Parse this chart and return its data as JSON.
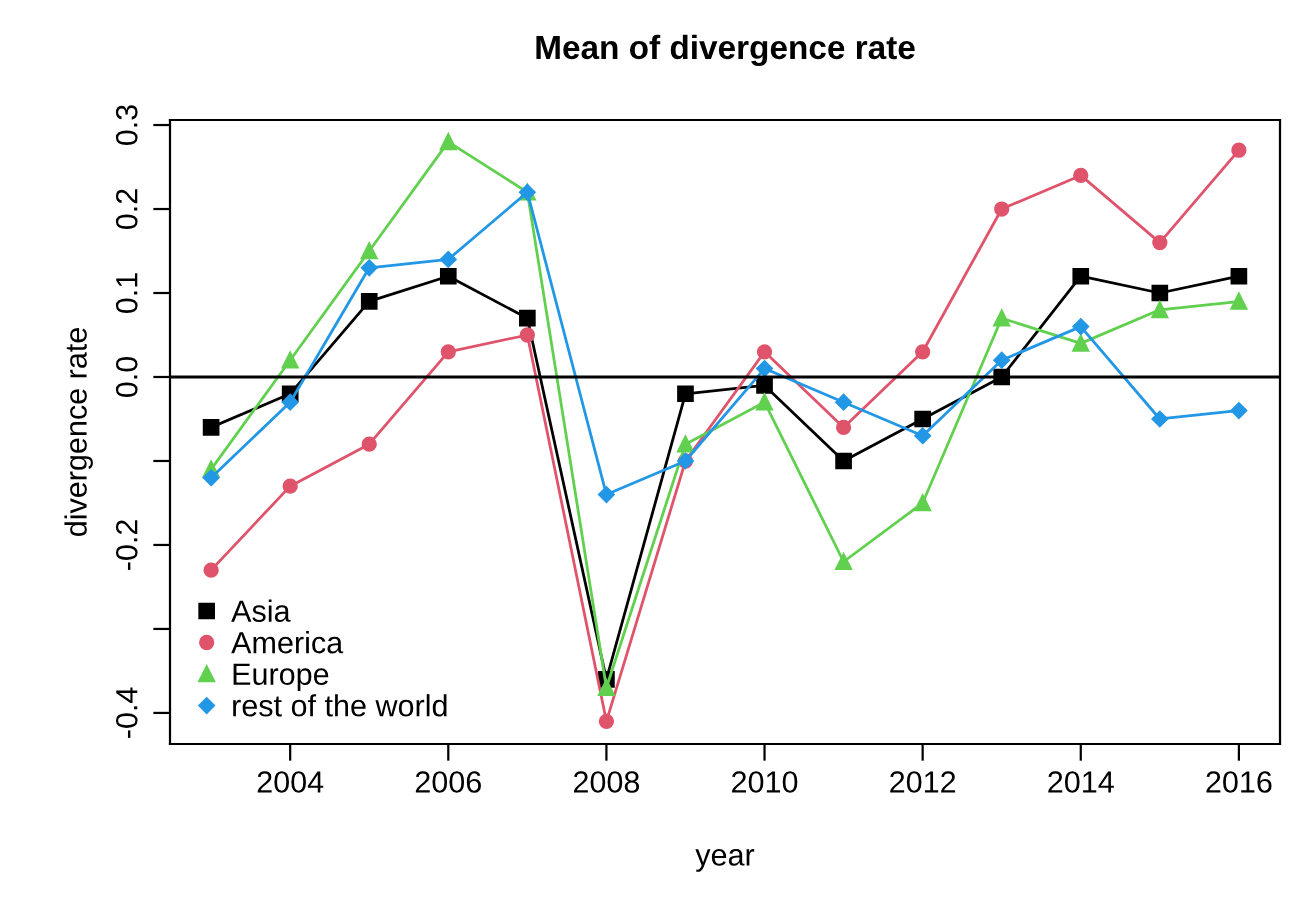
{
  "chart_data": {
    "type": "line",
    "title": "Mean of divergence rate",
    "xlabel": "year",
    "ylabel": "divergence rate",
    "x": [
      2003,
      2004,
      2005,
      2006,
      2007,
      2008,
      2009,
      2010,
      2011,
      2012,
      2013,
      2014,
      2015,
      2016
    ],
    "series": [
      {
        "name": "Asia",
        "color": "#000000",
        "marker": "square",
        "values": [
          -0.06,
          -0.02,
          0.09,
          0.12,
          0.07,
          -0.36,
          -0.02,
          -0.01,
          -0.1,
          -0.05,
          0.0,
          0.12,
          0.1,
          0.12
        ]
      },
      {
        "name": "America",
        "color": "#df536b",
        "marker": "circle",
        "values": [
          -0.23,
          -0.13,
          -0.08,
          0.03,
          0.05,
          -0.41,
          -0.1,
          0.03,
          -0.06,
          0.03,
          0.2,
          0.24,
          0.16,
          0.27
        ]
      },
      {
        "name": "Europe",
        "color": "#61d04f",
        "marker": "triangle",
        "values": [
          -0.11,
          0.02,
          0.15,
          0.28,
          0.22,
          -0.37,
          -0.08,
          -0.03,
          -0.22,
          -0.15,
          0.07,
          0.04,
          0.08,
          0.09
        ]
      },
      {
        "name": "rest of the world",
        "color": "#2297e6",
        "marker": "diamond",
        "values": [
          -0.12,
          -0.03,
          0.13,
          0.14,
          0.22,
          -0.14,
          -0.1,
          0.01,
          -0.03,
          -0.07,
          0.02,
          0.06,
          -0.05,
          -0.04
        ]
      }
    ],
    "xlim": [
      2002.48,
      2016.52
    ],
    "ylim": [
      -0.437,
      0.306
    ],
    "xticks": [
      2004,
      2006,
      2008,
      2010,
      2012,
      2014,
      2016
    ],
    "yticks": [
      {
        "value": -0.4,
        "label": "-0.4"
      },
      {
        "value": -0.3,
        "label": null
      },
      {
        "value": -0.2,
        "label": "-0.2"
      },
      {
        "value": -0.1,
        "label": null
      },
      {
        "value": 0.0,
        "label": "0.0"
      },
      0.1,
      0.2,
      0.3
    ],
    "ref_lines": [
      {
        "axis": "y",
        "value": 0,
        "color": "#000000"
      }
    ],
    "grid": false,
    "legend": "bottom left",
    "line_style": "solid"
  }
}
